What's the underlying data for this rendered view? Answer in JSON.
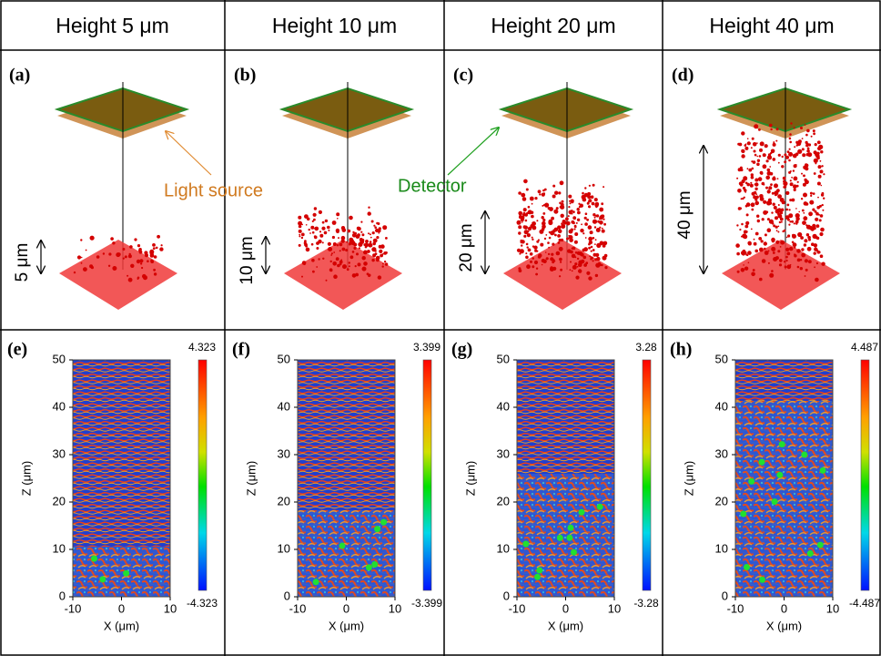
{
  "headers": [
    "Height 5 μm",
    "Height 10 μm",
    "Height 20 μm",
    "Height 40 μm"
  ],
  "top_panels": [
    {
      "label": "(a)",
      "height_label": "5 μm"
    },
    {
      "label": "(b)",
      "height_label": "10 μm"
    },
    {
      "label": "(c)",
      "height_label": "20 μm"
    },
    {
      "label": "(d)",
      "height_label": "40 μm"
    }
  ],
  "annotations": {
    "light_source": "Light source",
    "detector": "Detector"
  },
  "bottom_panels": [
    {
      "label": "(e)",
      "colorbar_max": "4.323",
      "colorbar_min": "-4.323"
    },
    {
      "label": "(f)",
      "colorbar_max": "3.399",
      "colorbar_min": "-3.399"
    },
    {
      "label": "(g)",
      "colorbar_max": "3.28",
      "colorbar_min": "-3.28"
    },
    {
      "label": "(h)",
      "colorbar_max": "4.487",
      "colorbar_min": "-4.487"
    }
  ],
  "axes": {
    "x_label": "X (μm)",
    "y_label": "Z (μm)",
    "xticks": [
      "-10",
      "0",
      "10"
    ],
    "yticks": [
      "0",
      "10",
      "20",
      "30",
      "40",
      "50"
    ]
  }
}
